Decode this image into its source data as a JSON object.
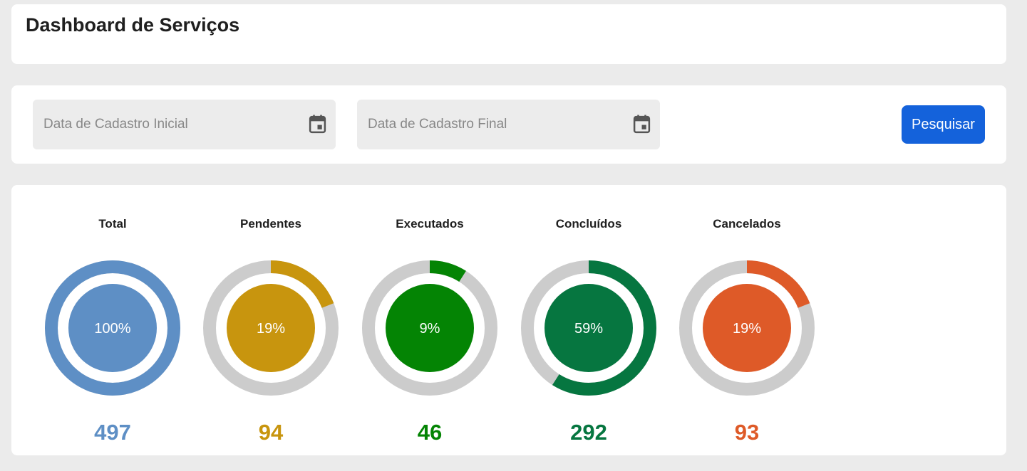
{
  "header": {
    "title": "Dashboard de Serviços"
  },
  "filters": {
    "start_date": {
      "placeholder": "Data de Cadastro Inicial",
      "icon": "calendar-icon"
    },
    "end_date": {
      "placeholder": "Data de Cadastro Final",
      "icon": "calendar-icon"
    },
    "search_label": "Pesquisar"
  },
  "colors": {
    "track": "#cccccc",
    "button": "#1462db"
  },
  "stats": [
    {
      "title": "Total",
      "percent_label": "100%",
      "fraction": 1.0,
      "count": "497",
      "color": "#5e8fc5"
    },
    {
      "title": "Pendentes",
      "percent_label": "19%",
      "fraction": 0.19,
      "count": "94",
      "color": "#c8950e"
    },
    {
      "title": "Executados",
      "percent_label": "9%",
      "fraction": 0.09,
      "count": "46",
      "color": "#048404"
    },
    {
      "title": "Concluídos",
      "percent_label": "59%",
      "fraction": 0.59,
      "count": "292",
      "color": "#067640"
    },
    {
      "title": "Cancelados",
      "percent_label": "19%",
      "fraction": 0.19,
      "count": "93",
      "color": "#de5a28"
    }
  ]
}
